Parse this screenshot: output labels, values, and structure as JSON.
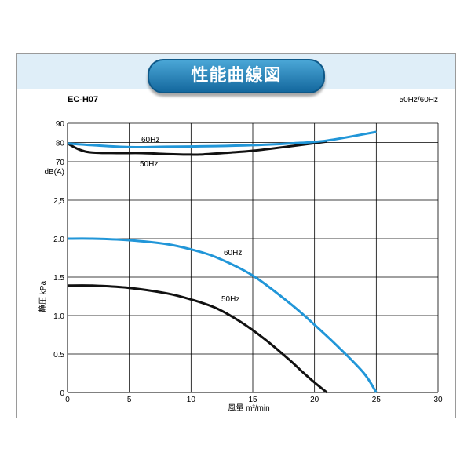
{
  "header": {
    "title": "性能曲線図",
    "model": "EC-H07",
    "frequency": "50Hz/60Hz"
  },
  "colors": {
    "hz60": "#2196d8",
    "hz50": "#111111",
    "grid": "#000000"
  },
  "chart_data": [
    {
      "type": "line",
      "title": "",
      "ylabel": "dB(A)",
      "xlim": [
        0,
        30
      ],
      "ylim": [
        70,
        90
      ],
      "yticks": [
        70,
        80,
        90
      ],
      "grid": true,
      "series": [
        {
          "name": "60Hz",
          "x": [
            0,
            2,
            5,
            8,
            12,
            15,
            18,
            21,
            25
          ],
          "y": [
            79.5,
            78.6,
            77.6,
            77.8,
            78.1,
            78.6,
            79.5,
            81.0,
            85.5
          ]
        },
        {
          "name": "50Hz",
          "x": [
            0,
            1,
            2,
            4,
            6,
            8,
            10,
            11,
            13,
            15,
            18,
            21
          ],
          "y": [
            79.5,
            76.2,
            74.8,
            74.5,
            74.5,
            74.0,
            73.7,
            73.8,
            74.7,
            75.7,
            78.0,
            80.5
          ]
        }
      ]
    },
    {
      "type": "line",
      "title": "",
      "xlabel": "風量 m³/min",
      "ylabel": "静圧 kPa",
      "xlim": [
        0,
        30
      ],
      "ylim": [
        0,
        2.5
      ],
      "xticks": [
        0,
        5,
        10,
        15,
        20,
        25,
        30
      ],
      "yticks": [
        "0",
        "0.5",
        "1.0",
        "1.5",
        "2.0",
        "2,5"
      ],
      "grid": true,
      "series": [
        {
          "name": "60Hz",
          "x": [
            0,
            2,
            5,
            8,
            10,
            12,
            15,
            18,
            20,
            22,
            24,
            25
          ],
          "y": [
            2.0,
            2.0,
            1.98,
            1.93,
            1.86,
            1.76,
            1.52,
            1.16,
            0.88,
            0.58,
            0.25,
            0
          ]
        },
        {
          "name": "50Hz",
          "x": [
            0,
            2,
            5,
            8,
            10,
            12,
            14,
            16,
            18,
            19,
            20,
            21
          ],
          "y": [
            1.39,
            1.39,
            1.36,
            1.29,
            1.21,
            1.1,
            0.92,
            0.69,
            0.42,
            0.27,
            0.13,
            0
          ]
        }
      ]
    }
  ]
}
